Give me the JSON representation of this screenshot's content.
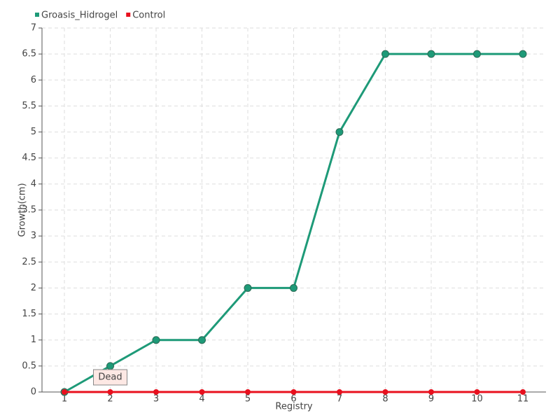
{
  "chart_data": {
    "type": "line",
    "categories": [
      "1",
      "2",
      "3",
      "4",
      "5",
      "6",
      "7",
      "8",
      "9",
      "10",
      "11"
    ],
    "series": [
      {
        "name": "Groasis_Hidrogel",
        "color": "#1e9a78",
        "values": [
          0,
          0.5,
          1,
          1,
          2,
          2,
          5,
          6.5,
          6.5,
          6.5,
          6.5
        ]
      },
      {
        "name": "Control",
        "color": "#e8101e",
        "values": [
          0,
          0,
          0,
          0,
          0,
          0,
          0,
          0,
          0,
          0,
          0
        ]
      }
    ],
    "ylim": [
      0,
      7
    ],
    "yticks": [
      0,
      0.5,
      1,
      1.5,
      2,
      2.5,
      3,
      3.5,
      4,
      4.5,
      5,
      5.5,
      6,
      6.5,
      7
    ],
    "xlabel": "Registry",
    "ylabel": "Growth(cm)",
    "grid": true,
    "legend": "top-left",
    "annotation": {
      "text": "Dead",
      "series": 1,
      "index": 1
    }
  }
}
